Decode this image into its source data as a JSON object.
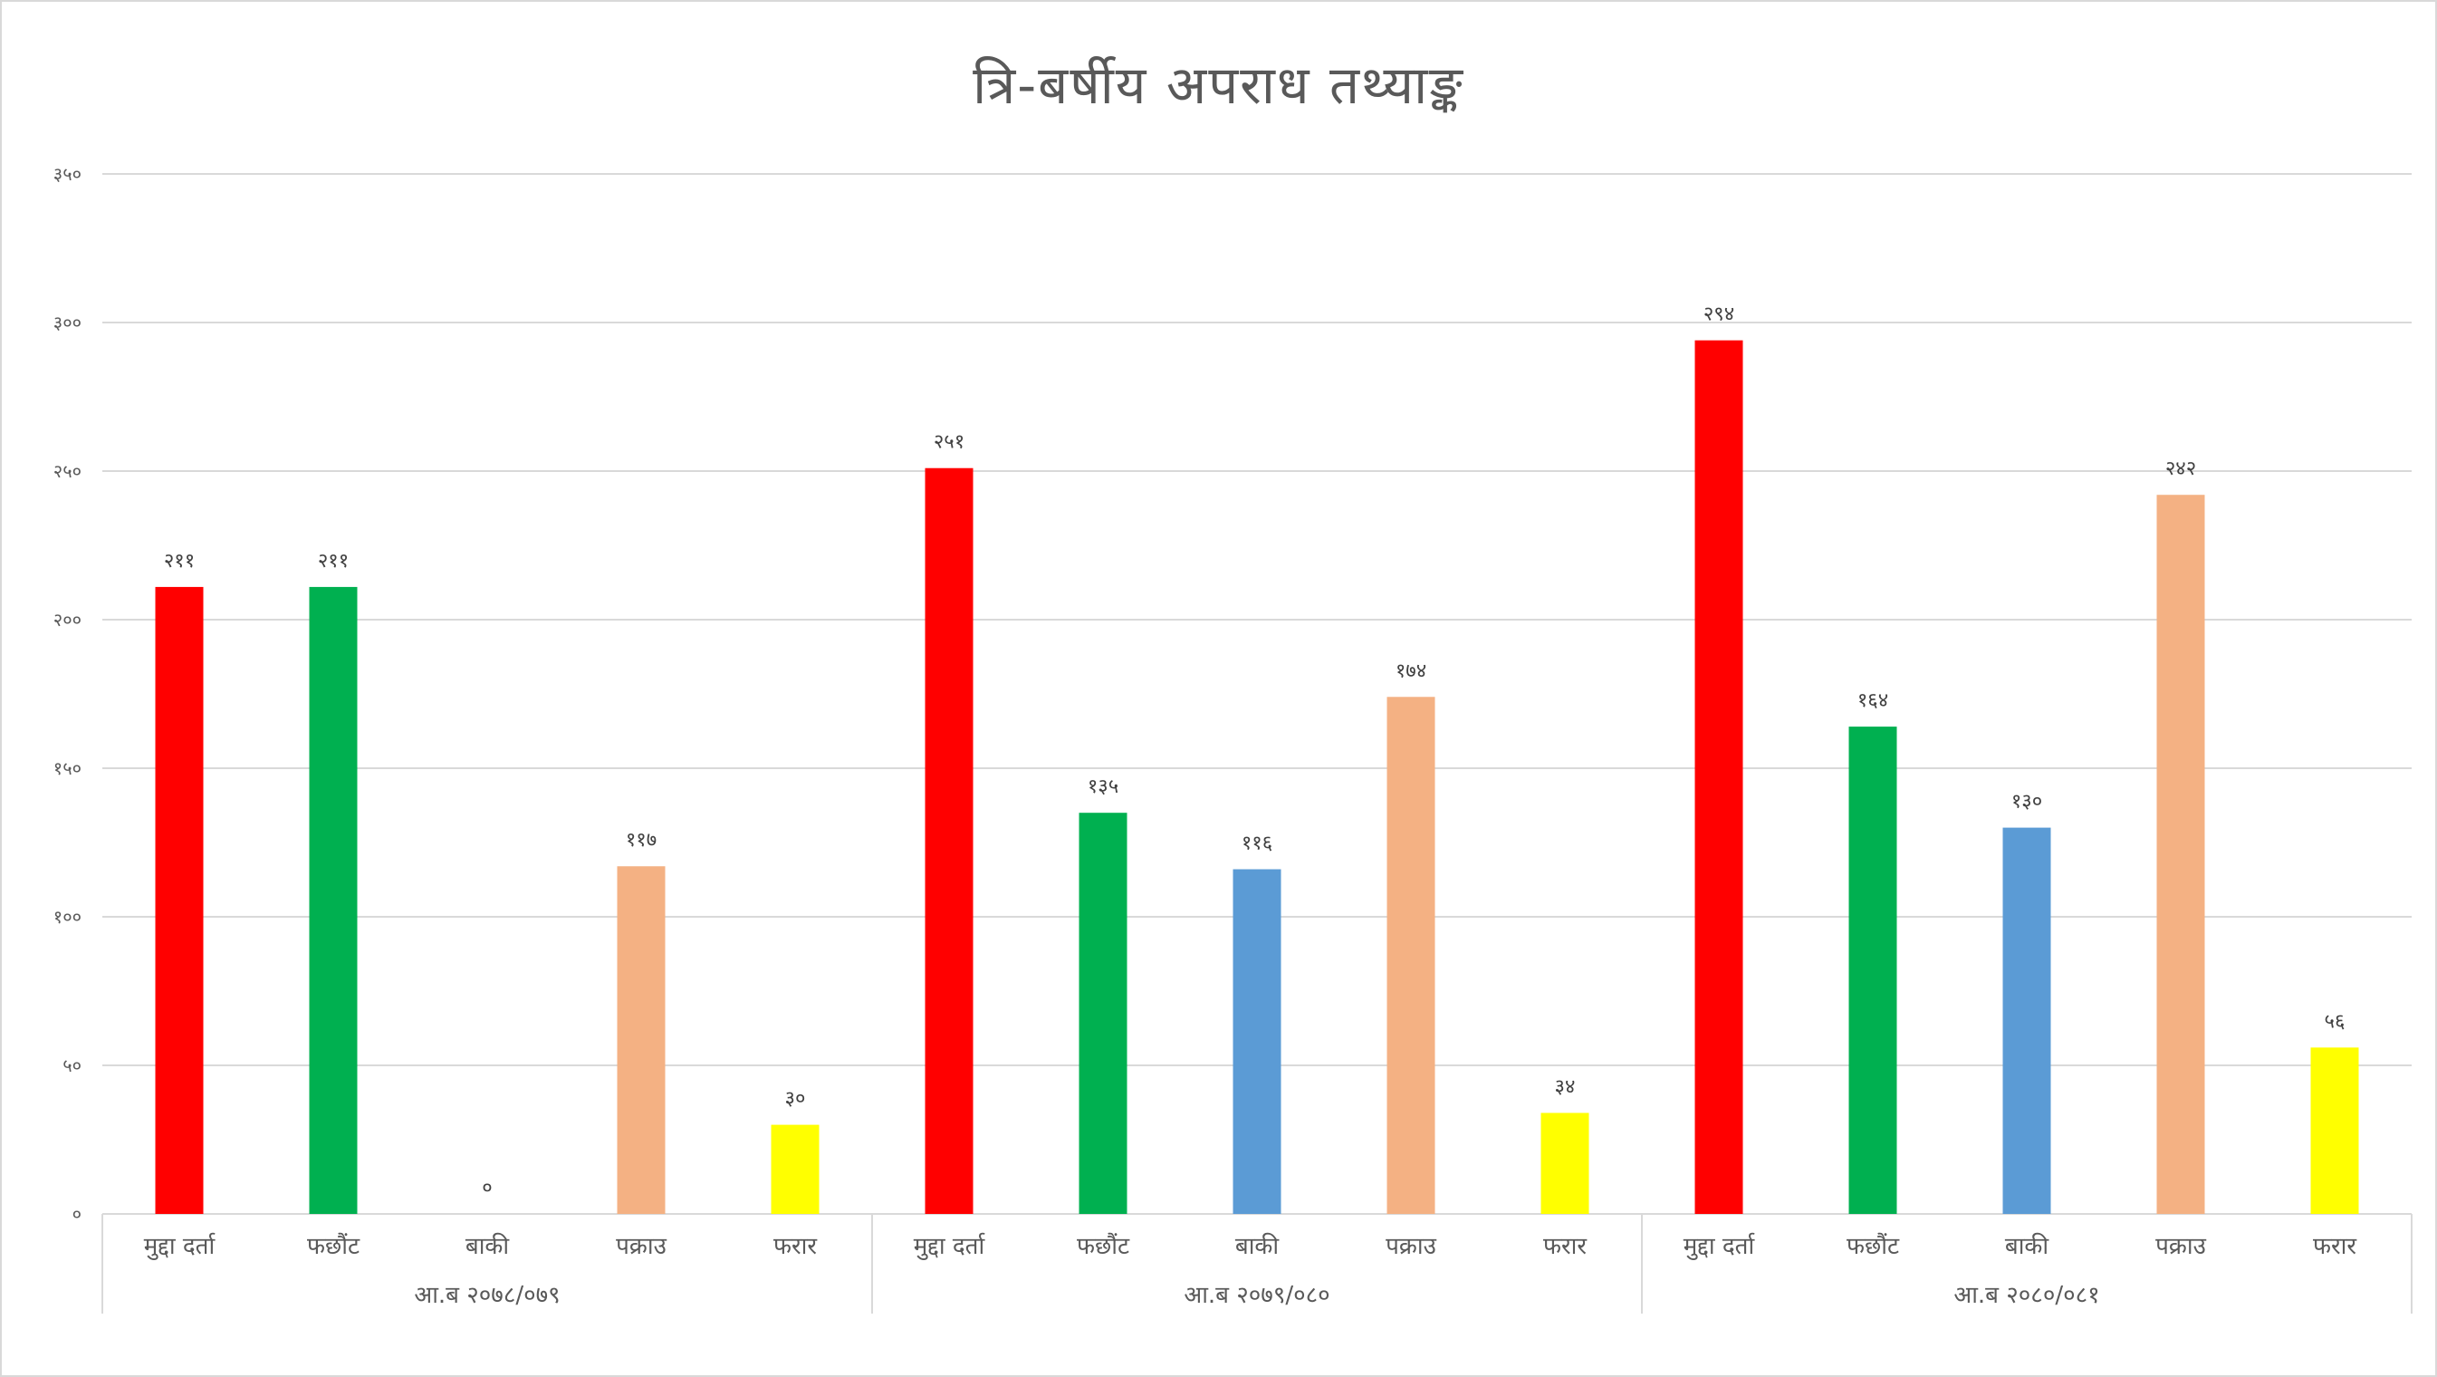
{
  "chart_data": {
    "type": "bar",
    "title": "त्रि-बर्षीय अपराध तथ्याङ्क",
    "xlabel": "",
    "ylabel": "",
    "ylim": [
      0,
      350
    ],
    "yticks": [
      0,
      50,
      100,
      150,
      200,
      250,
      300,
      350
    ],
    "ytick_labels": [
      "०",
      "५०",
      "१००",
      "१५०",
      "२००",
      "२५०",
      "३००",
      "३५०"
    ],
    "grid": true,
    "legend": null,
    "group_labels": [
      "आ.ब २०७८/०७९",
      "आ.ब २०७९/०८०",
      "आ.ब २०८०/०८१"
    ],
    "categories": [
      "मुद्दा दर्ता",
      "फछ्र्यौट",
      "बाकी",
      "पक्राउ",
      "फरार"
    ],
    "category_labels_displayed": [
      "मुद्दा दर्ता",
      "फछौंट",
      "बाकी",
      "पक्राउ",
      "फरार"
    ],
    "category_colors": [
      "#ff0000",
      "#00b050",
      "#5b9bd5",
      "#f4b183",
      "#ffff00"
    ],
    "groups": [
      {
        "label": "आ.ब २०७८/०७९",
        "values": [
          211,
          211,
          0,
          117,
          30
        ],
        "value_labels": [
          "२११",
          "२११",
          "०",
          "११७",
          "३०"
        ]
      },
      {
        "label": "आ.ब २०७९/०८०",
        "values": [
          251,
          135,
          116,
          174,
          34
        ],
        "value_labels": [
          "२५१",
          "१३५",
          "११६",
          "१७४",
          "३४"
        ]
      },
      {
        "label": "आ.ब २०८०/०८१",
        "values": [
          294,
          164,
          130,
          242,
          56
        ],
        "value_labels": [
          "२९४",
          "१६४",
          "१३०",
          "२४२",
          "५६"
        ]
      }
    ]
  },
  "colors": {
    "title": "#595959",
    "gridline": "#d9d9d9",
    "axis_text": "#595959",
    "border": "#d9d9d9"
  }
}
